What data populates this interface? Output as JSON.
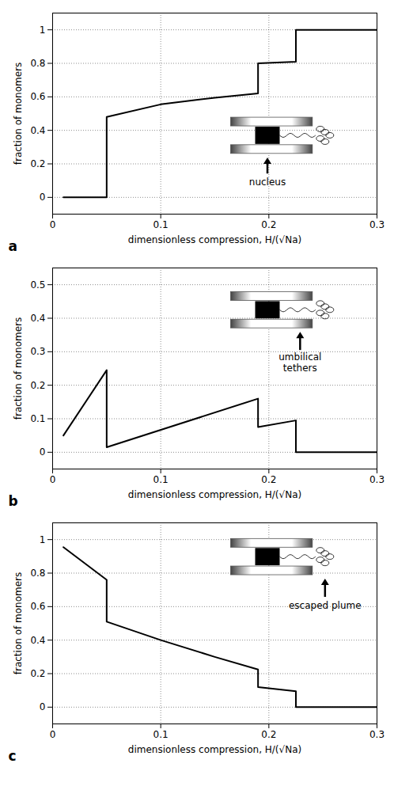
{
  "chart_data": [
    {
      "type": "line",
      "title": "a",
      "annotation": "nucleus",
      "x_label": "dimensionless compression, H/(√Na)",
      "y_label": "fraction of monomers",
      "x": [
        0.01,
        0.05,
        0.05,
        0.1,
        0.15,
        0.19,
        0.19,
        0.225,
        0.225,
        0.3
      ],
      "values": [
        0,
        0,
        0.48,
        0.555,
        0.595,
        0.62,
        0.8,
        0.81,
        1.0,
        1.0
      ],
      "color": "#000000",
      "xlim": [
        0,
        0.3
      ],
      "xticks": [
        0,
        0.1,
        0.2,
        0.3
      ],
      "ylim": [
        -0.1,
        1.1
      ],
      "yticks": [
        0,
        0.2,
        0.4,
        0.6,
        0.8,
        1
      ],
      "grid": true
    },
    {
      "type": "line",
      "title": "b",
      "annotation": "umbilical tethers",
      "x_label": "dimensionless compression, H/(√Na)",
      "y_label": "fraction of monomers",
      "x": [
        0.01,
        0.05,
        0.05,
        0.19,
        0.19,
        0.225,
        0.225,
        0.3
      ],
      "values": [
        0.05,
        0.245,
        0.015,
        0.16,
        0.075,
        0.095,
        0,
        0
      ],
      "color": "#000000",
      "xlim": [
        0,
        0.3
      ],
      "xticks": [
        0,
        0.1,
        0.2,
        0.3
      ],
      "ylim": [
        -0.05,
        0.55
      ],
      "yticks": [
        0,
        0.1,
        0.2,
        0.3,
        0.4,
        0.5
      ],
      "grid": true
    },
    {
      "type": "line",
      "title": "c",
      "annotation": "escaped plume",
      "x_label": "dimensionless compression, H/(√Na)",
      "y_label": "fraction of monomers",
      "x": [
        0.01,
        0.05,
        0.05,
        0.1,
        0.15,
        0.19,
        0.19,
        0.225,
        0.225,
        0.3
      ],
      "values": [
        0.955,
        0.76,
        0.51,
        0.4,
        0.3,
        0.225,
        0.12,
        0.095,
        0,
        0
      ],
      "color": "#000000",
      "xlim": [
        0,
        0.3
      ],
      "xticks": [
        0,
        0.1,
        0.2,
        0.3
      ],
      "ylim": [
        -0.1,
        1.1
      ],
      "yticks": [
        0,
        0.2,
        0.4,
        0.6,
        0.8,
        1
      ],
      "grid": true
    }
  ]
}
